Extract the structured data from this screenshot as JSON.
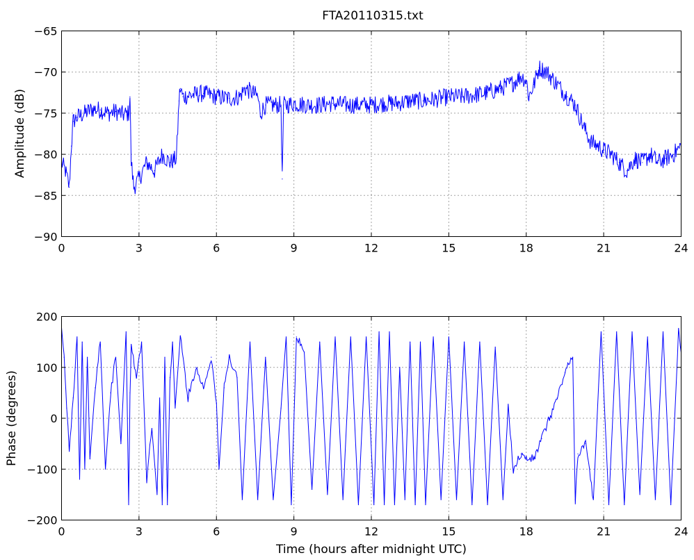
{
  "figure": {
    "title": "FTA20110315.txt",
    "line_color": "#0000ff"
  },
  "chart_data": [
    {
      "type": "line",
      "title": "FTA20110315.txt",
      "xlabel": "",
      "ylabel": "Amplitude (dB)",
      "xlim": [
        0,
        24
      ],
      "ylim": [
        -90,
        -65
      ],
      "xticks": [
        0,
        3,
        6,
        9,
        12,
        15,
        18,
        21,
        24
      ],
      "yticks": [
        -90,
        -85,
        -80,
        -75,
        -70,
        -65
      ],
      "grid": true,
      "series": [
        {
          "color": "#0000ff",
          "x": [
            0,
            0.15,
            0.3,
            0.38,
            0.45,
            0.6,
            0.9,
            1.2,
            1.5,
            1.8,
            2.1,
            2.4,
            2.6,
            2.65,
            2.7,
            2.8,
            3.0,
            3.3,
            3.6,
            3.9,
            4.2,
            4.45,
            4.55,
            4.6,
            4.7,
            5.0,
            5.5,
            6.0,
            6.5,
            6.9,
            7.1,
            7.4,
            7.6,
            7.7,
            7.9,
            8.3,
            8.5,
            8.55,
            8.6,
            8.7,
            9.0,
            9.5,
            10.0,
            10.5,
            11.0,
            11.5,
            12.0,
            12.5,
            13.0,
            13.5,
            14.0,
            14.5,
            15.0,
            15.5,
            16.0,
            16.5,
            17.0,
            17.5,
            17.8,
            18.0,
            18.1,
            18.3,
            18.5,
            18.8,
            19.2,
            19.6,
            19.9,
            20.2,
            20.5,
            20.8,
            21.0,
            21.3,
            21.6,
            21.9,
            22.2,
            22.5,
            22.8,
            23.1,
            23.4,
            23.7,
            24.0
          ],
          "y": [
            -81,
            -82,
            -84,
            -79,
            -76,
            -75.5,
            -75,
            -74.5,
            -74.6,
            -75,
            -74.8,
            -75.2,
            -75,
            -73,
            -81,
            -84,
            -83,
            -81,
            -82,
            -80,
            -81,
            -80.5,
            -73.5,
            -72,
            -73,
            -72.8,
            -72.6,
            -73,
            -73.2,
            -73,
            -72,
            -72.5,
            -73,
            -75,
            -74,
            -74,
            -74,
            -83,
            -74,
            -74,
            -73.8,
            -74,
            -74,
            -73.8,
            -74,
            -74,
            -74,
            -73.8,
            -73.8,
            -73.5,
            -73.5,
            -73.3,
            -73,
            -73,
            -72.8,
            -72.5,
            -72,
            -71.3,
            -70.5,
            -71,
            -73,
            -71.5,
            -69.5,
            -70,
            -71.5,
            -73,
            -74,
            -76.5,
            -78.5,
            -79,
            -79.5,
            -80,
            -81,
            -82,
            -80.5,
            -81,
            -80,
            -81,
            -80.5,
            -80,
            -79
          ]
        }
      ]
    },
    {
      "type": "line",
      "title": "",
      "xlabel": "Time (hours after midnight UTC)",
      "ylabel": "Phase (degrees)",
      "xlim": [
        0,
        24
      ],
      "ylim": [
        -200,
        200
      ],
      "xticks": [
        0,
        3,
        6,
        9,
        12,
        15,
        18,
        21,
        24
      ],
      "yticks": [
        -200,
        -100,
        0,
        100,
        200
      ],
      "grid": true,
      "series": [
        {
          "color": "#0000ff",
          "x": [
            0,
            0.1,
            0.2,
            0.3,
            0.45,
            0.6,
            0.7,
            0.8,
            0.9,
            1.0,
            1.1,
            1.3,
            1.5,
            1.7,
            1.9,
            2.1,
            2.3,
            2.5,
            2.6,
            2.65,
            2.7,
            2.9,
            3.1,
            3.3,
            3.5,
            3.7,
            3.8,
            3.9,
            4.0,
            4.1,
            4.2,
            4.3,
            4.4,
            4.6,
            4.9,
            5.2,
            5.5,
            5.8,
            6.0,
            6.1,
            6.3,
            6.5,
            6.8,
            7.0,
            7.3,
            7.6,
            7.9,
            8.2,
            8.5,
            8.7,
            8.9,
            9.1,
            9.4,
            9.7,
            10.0,
            10.3,
            10.6,
            10.9,
            11.2,
            11.5,
            11.8,
            12.1,
            12.3,
            12.5,
            12.7,
            12.9,
            13.1,
            13.3,
            13.5,
            13.7,
            13.9,
            14.1,
            14.4,
            14.7,
            15.0,
            15.3,
            15.6,
            15.9,
            16.2,
            16.5,
            16.8,
            17.1,
            17.3,
            17.5,
            17.8,
            18.0,
            18.3,
            18.6,
            18.9,
            19.2,
            19.5,
            19.8,
            19.9,
            20.0,
            20.3,
            20.6,
            20.9,
            21.2,
            21.5,
            21.8,
            22.1,
            22.4,
            22.7,
            23.0,
            23.3,
            23.6,
            23.9,
            24.0
          ],
          "y": [
            170,
            120,
            20,
            -60,
            40,
            160,
            -120,
            150,
            -100,
            120,
            -80,
            60,
            150,
            -100,
            50,
            120,
            -50,
            170,
            -170,
            50,
            140,
            80,
            150,
            -120,
            -20,
            -150,
            40,
            -170,
            120,
            -170,
            80,
            150,
            20,
            160,
            40,
            100,
            60,
            120,
            30,
            -100,
            60,
            120,
            80,
            -160,
            150,
            -160,
            120,
            -160,
            20,
            160,
            -170,
            160,
            130,
            -140,
            150,
            -150,
            160,
            -160,
            160,
            -170,
            160,
            -170,
            170,
            -170,
            170,
            -170,
            100,
            -160,
            150,
            -170,
            150,
            -170,
            160,
            -160,
            160,
            -160,
            150,
            -170,
            150,
            -170,
            140,
            -160,
            20,
            -100,
            -70,
            -80,
            -80,
            -40,
            0,
            40,
            90,
            120,
            -160,
            -70,
            -50,
            -160,
            170,
            -170,
            170,
            -170,
            170,
            -150,
            160,
            -160,
            170,
            -170,
            170,
            130
          ]
        }
      ]
    }
  ],
  "labels": {
    "amp_ylabel": "Amplitude (dB)",
    "phase_ylabel": "Phase (degrees)",
    "xlabel": "Time (hours after midnight UTC)"
  }
}
